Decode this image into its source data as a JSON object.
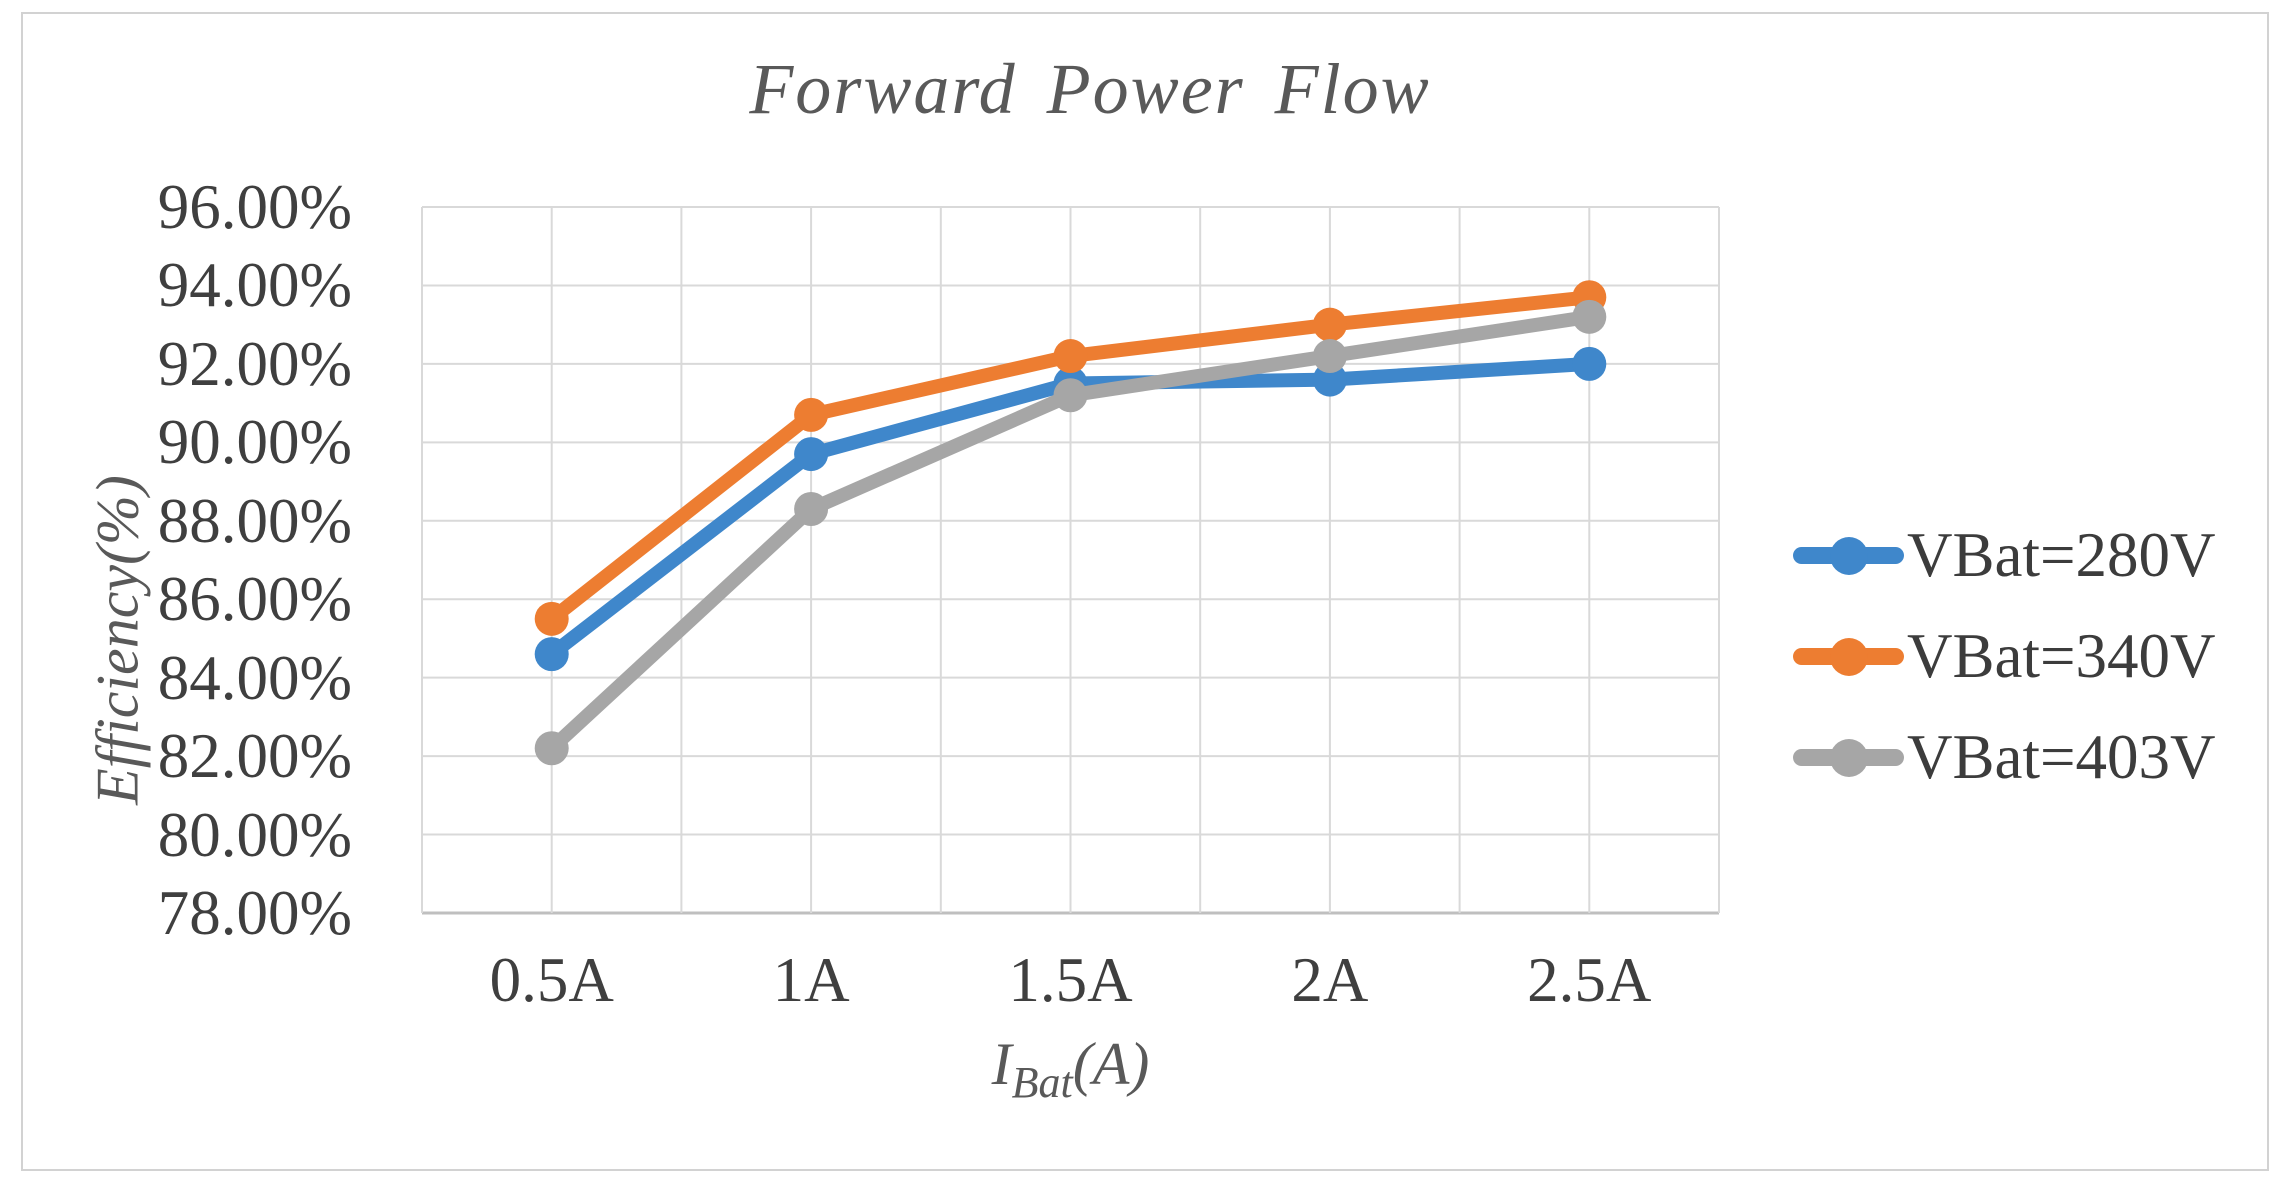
{
  "figure": {
    "title": "Forward Power Flow",
    "y_axis_title": "Efficiency(%)"
  },
  "chart_data": {
    "type": "line",
    "title": "Forward Power Flow",
    "xlabel": "I_Bat(A)",
    "xlabel_parts": {
      "base": "I",
      "sub": "Bat",
      "unit": "(A)"
    },
    "ylabel": "Efficiency(%)",
    "categories": [
      "0.5A",
      "1A",
      "1.5A",
      "2A",
      "2.5A"
    ],
    "y_ticks": [
      "96.00%",
      "94.00%",
      "92.00%",
      "90.00%",
      "88.00%",
      "86.00%",
      "84.00%",
      "82.00%",
      "80.00%",
      "78.00%"
    ],
    "ylim": [
      78,
      96
    ],
    "grid": true,
    "legend_position": "right",
    "series": [
      {
        "name": "VBat=280V",
        "color": "#3f87cb",
        "values": [
          84.6,
          89.7,
          91.5,
          91.6,
          92.0
        ]
      },
      {
        "name": "VBat=340V",
        "color": "#ed7d31",
        "values": [
          85.5,
          90.7,
          92.2,
          93.0,
          93.7
        ]
      },
      {
        "name": "VBat=403V",
        "color": "#a6a6a6",
        "values": [
          82.2,
          88.3,
          91.2,
          92.2,
          93.2
        ]
      }
    ],
    "colors": {
      "gridline": "#d9d9d9",
      "axis_line": "#bfbfbf",
      "tick_text": "#3f3f3f",
      "title_text": "#595959"
    }
  }
}
